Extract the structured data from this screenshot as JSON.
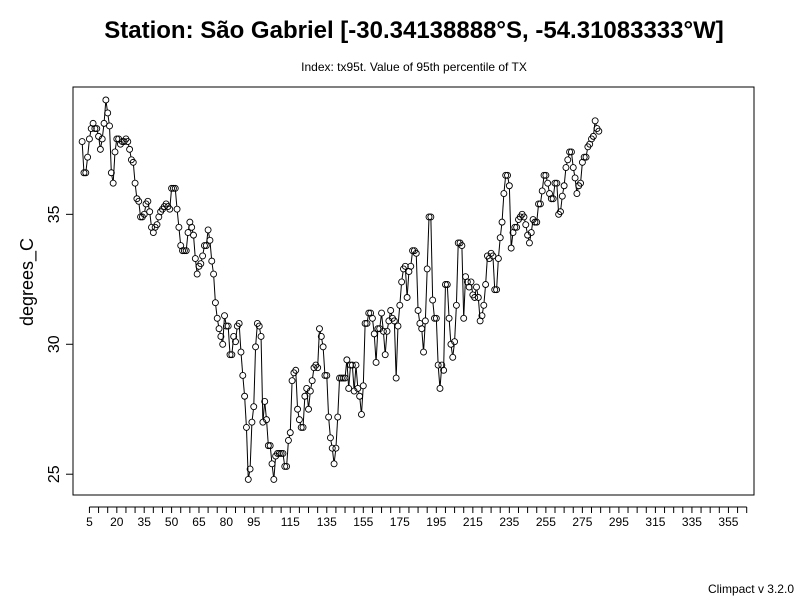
{
  "chart_data": {
    "type": "line",
    "title": "Station: São Gabriel [-30.34138888°S, -54.31083333°W]",
    "subtitle": "Index: tx95t. Value of 95th percentile of TX",
    "ylabel": "degrees_C",
    "xlabel": "",
    "xlim": [
      -4,
      369
    ],
    "ylim": [
      24.2,
      39.9
    ],
    "x_ticks": [
      5,
      10,
      15,
      20,
      25,
      30,
      35,
      40,
      45,
      50,
      55,
      60,
      65,
      70,
      75,
      80,
      85,
      90,
      95,
      100,
      105,
      110,
      115,
      120,
      125,
      130,
      135,
      140,
      145,
      150,
      155,
      160,
      165,
      170,
      175,
      180,
      185,
      190,
      195,
      200,
      205,
      210,
      215,
      220,
      225,
      230,
      235,
      240,
      245,
      250,
      255,
      260,
      265,
      270,
      275,
      280,
      285,
      290,
      295,
      300,
      305,
      310,
      315,
      320,
      325,
      330,
      335,
      340,
      345,
      350,
      355,
      360,
      365
    ],
    "x_tick_labels": [
      "5",
      "20",
      "35",
      "50",
      "65",
      "80",
      "95",
      "115",
      "135",
      "155",
      "175",
      "195",
      "215",
      "235",
      "255",
      "275",
      "295",
      "315",
      "335",
      "355"
    ],
    "y_ticks": [
      25,
      30,
      35
    ],
    "y_tick_labels": [
      "25",
      "30",
      "35"
    ],
    "marker": "open-circle",
    "grid": false,
    "series": [
      {
        "values": [
          37.8,
          36.6,
          36.6,
          37.2,
          37.9,
          38.3,
          38.5,
          38.3,
          38.3,
          38.0,
          37.5,
          37.9,
          38.5,
          39.4,
          38.9,
          38.4,
          36.6,
          36.2,
          37.4,
          37.9,
          37.9,
          37.7,
          37.8,
          37.8,
          37.9,
          37.8,
          37.5,
          37.1,
          37.0,
          36.2,
          35.6,
          35.5,
          34.9,
          34.9,
          35.0,
          35.4,
          35.5,
          35.1,
          34.5,
          34.3,
          34.5,
          34.6,
          34.9,
          35.1,
          35.2,
          35.3,
          35.4,
          35.3,
          35.2,
          36.0,
          36.0,
          36.0,
          35.2,
          34.5,
          33.8,
          33.6,
          33.6,
          33.6,
          34.3,
          34.7,
          34.5,
          34.2,
          33.3,
          32.7,
          33.0,
          33.1,
          33.4,
          33.8,
          33.8,
          34.4,
          34.0,
          33.2,
          32.7,
          31.6,
          31.0,
          30.6,
          30.3,
          30.0,
          31.1,
          30.7,
          30.7,
          29.6,
          29.6,
          30.3,
          30.1,
          30.7,
          30.8,
          29.7,
          28.8,
          28.0,
          26.8,
          24.8,
          25.2,
          27.0,
          27.6,
          29.9,
          30.8,
          30.7,
          30.3,
          27.0,
          27.8,
          27.1,
          26.1,
          26.1,
          25.4,
          24.8,
          25.7,
          25.8,
          25.8,
          25.8,
          25.8,
          25.3,
          25.3,
          26.3,
          26.6,
          28.6,
          28.9,
          29.0,
          27.5,
          27.1,
          26.8,
          26.8,
          28.0,
          28.3,
          27.5,
          28.2,
          28.6,
          29.1,
          29.2,
          29.1,
          30.6,
          30.3,
          29.9,
          28.8,
          28.8,
          27.2,
          26.4,
          26.0,
          25.4,
          26.0,
          27.2,
          28.7,
          28.7,
          28.7,
          28.7,
          29.4,
          28.3,
          29.2,
          29.2,
          28.2,
          29.2,
          28.3,
          28.0,
          27.3,
          28.4,
          30.8,
          30.8,
          31.2,
          31.2,
          31.0,
          30.4,
          29.3,
          30.6,
          30.6,
          31.2,
          30.5,
          29.6,
          30.5,
          30.9,
          31.3,
          31.0,
          30.9,
          28.7,
          30.7,
          31.5,
          32.4,
          32.9,
          33.0,
          31.8,
          32.8,
          33.0,
          33.6,
          33.6,
          33.5,
          31.3,
          30.8,
          30.6,
          29.7,
          30.9,
          32.9,
          34.9,
          34.9,
          31.7,
          31.0,
          31.0,
          29.2,
          28.3,
          29.2,
          29.0,
          32.3,
          32.3,
          31.0,
          30.0,
          29.5,
          30.1,
          31.5,
          33.9,
          33.9,
          33.8,
          31.0,
          32.6,
          32.4,
          32.2,
          32.4,
          31.9,
          31.8,
          32.2,
          31.8,
          30.9,
          31.1,
          31.5,
          32.3,
          33.4,
          33.3,
          33.5,
          33.4,
          32.1,
          32.1,
          33.3,
          34.1,
          34.7,
          35.8,
          36.5,
          36.5,
          36.1,
          33.7,
          34.3,
          34.5,
          34.5,
          34.8,
          34.9,
          35.0,
          34.9,
          34.6,
          34.2,
          33.9,
          34.3,
          34.8,
          34.7,
          34.7,
          35.4,
          35.4,
          35.9,
          36.5,
          36.5,
          36.2,
          35.8,
          35.6,
          35.6,
          36.2,
          36.2,
          35.0,
          35.1,
          35.7,
          36.1,
          36.8,
          37.1,
          37.4,
          37.4,
          36.8,
          36.4,
          35.8,
          36.1,
          36.2,
          37.0,
          37.2,
          37.2,
          37.6,
          37.7,
          37.9,
          38.0,
          38.6,
          38.3,
          38.2
        ],
        "x_start": 1,
        "x_step": 1
      }
    ]
  },
  "footer": {
    "version_label": "Climpact v 3.2.0"
  },
  "colors": {
    "background": "#ffffff",
    "line": "#000000",
    "marker": "#000000"
  }
}
